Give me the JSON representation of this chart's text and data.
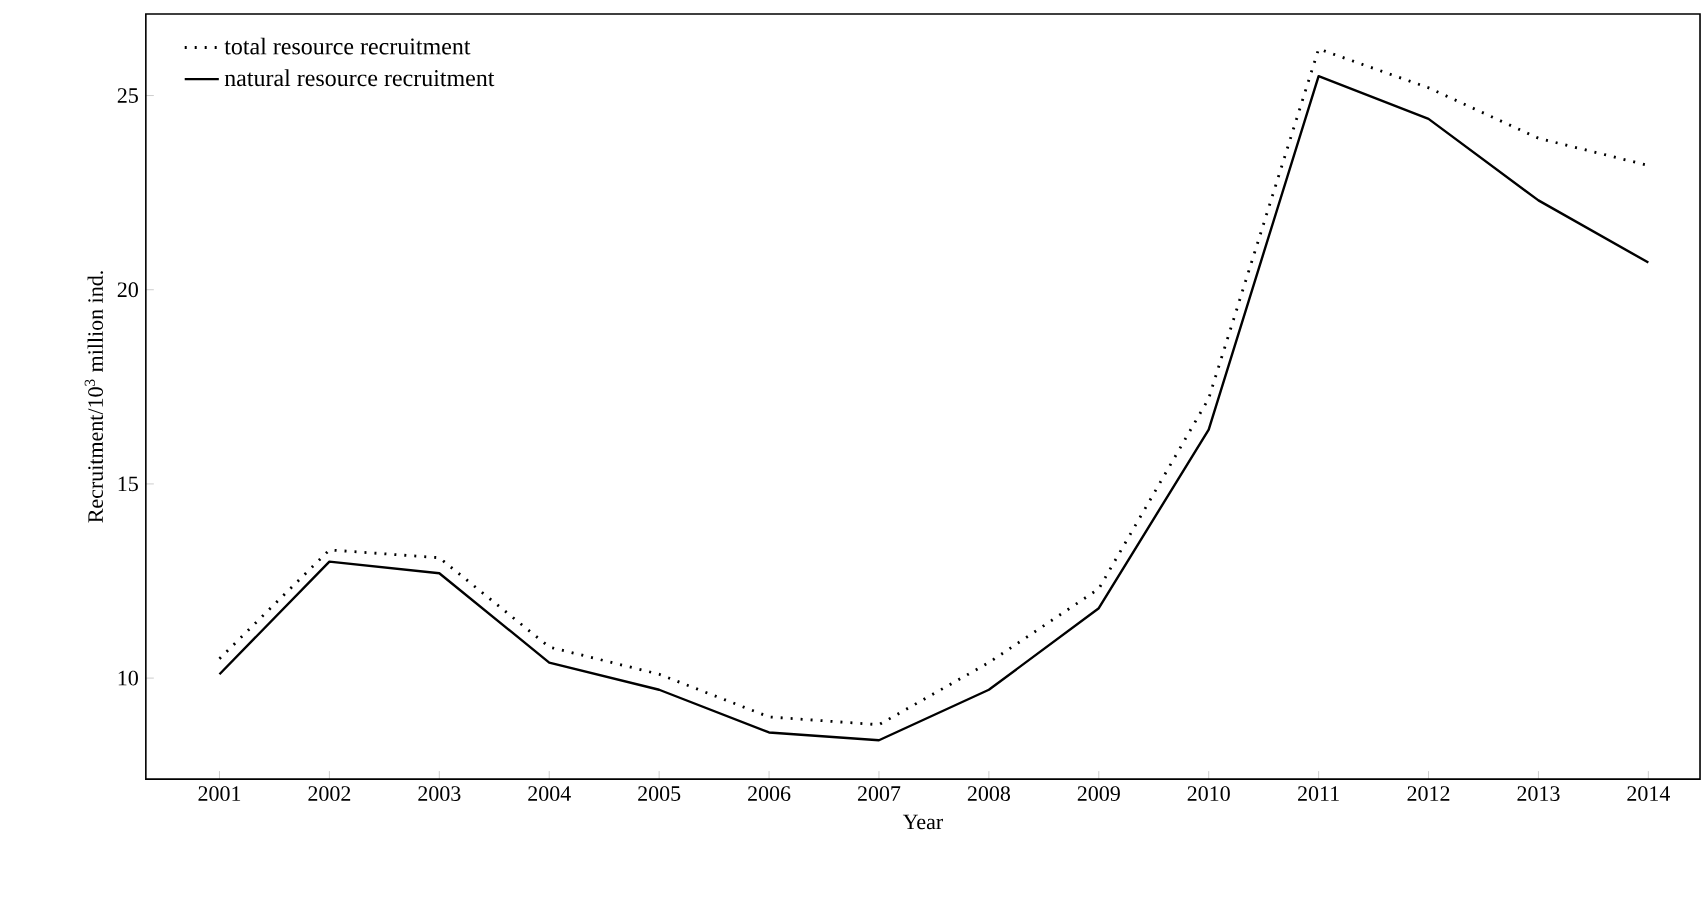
{
  "chart_data": {
    "type": "line",
    "xlabel": "Year",
    "ylabel": "Recruitment/10$^{3}$ million ind.",
    "categories": [
      "2001",
      "2002",
      "2003",
      "2004",
      "2005",
      "2006",
      "2007",
      "2008",
      "2009",
      "2010",
      "2011",
      "2012",
      "2013",
      "2014"
    ],
    "series": [
      {
        "name": "total resource recruitment",
        "color": "#000000",
        "line_style": "dotted",
        "values": [
          10.5,
          13.3,
          13.1,
          10.8,
          10.1,
          9.0,
          8.8,
          10.4,
          12.3,
          17.2,
          26.2,
          25.2,
          23.9,
          23.2
        ]
      },
      {
        "name": "natural resource recruitment",
        "color": "#000000",
        "line_style": "solid",
        "values": [
          10.1,
          13.0,
          12.7,
          10.4,
          9.7,
          8.6,
          8.4,
          9.7,
          11.8,
          16.4,
          25.5,
          24.4,
          22.3,
          20.7
        ]
      }
    ],
    "ylim": [
      7.4,
      27.1
    ],
    "yticks": [
      10,
      15,
      20,
      25
    ],
    "grid": false,
    "legend": "top left",
    "marker": "none"
  }
}
